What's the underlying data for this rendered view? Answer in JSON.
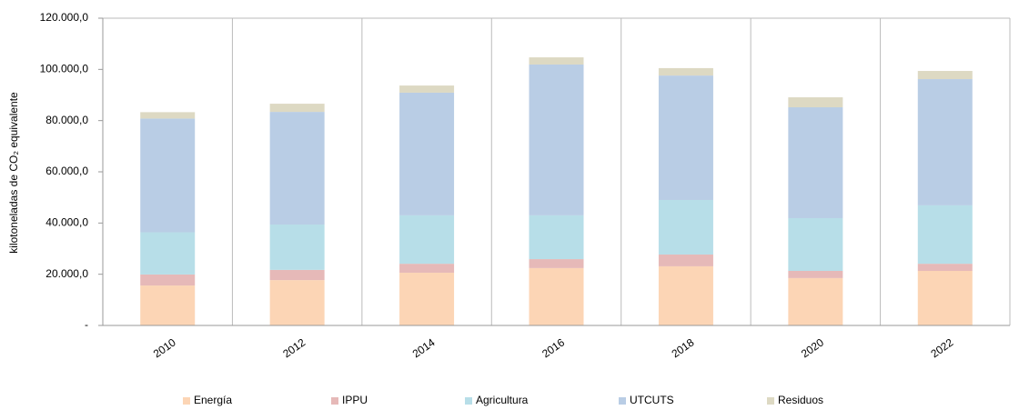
{
  "chart_data": {
    "type": "stacked_bar",
    "y_label": "kilotoneladas de CO₂ equivalente",
    "categories": [
      "2010",
      "2012",
      "2014",
      "2016",
      "2018",
      "2020",
      "2022"
    ],
    "series": [
      {
        "name": "Energía",
        "color": "#fcd5b5",
        "values": [
          15600,
          17700,
          20600,
          22400,
          23100,
          18500,
          21300
        ]
      },
      {
        "name": "IPPU",
        "color": "#e6b9b8",
        "values": [
          4300,
          4000,
          3500,
          3500,
          4600,
          2800,
          2800
        ]
      },
      {
        "name": "Agricultura",
        "color": "#b7dee8",
        "values": [
          16500,
          17700,
          18900,
          17100,
          21300,
          20600,
          22800
        ]
      },
      {
        "name": "UTCUTS",
        "color": "#b9cde5",
        "values": [
          44400,
          44000,
          47900,
          58900,
          48600,
          43300,
          49300
        ]
      },
      {
        "name": "Residuos",
        "color": "#ddd9c3",
        "values": [
          2500,
          3200,
          2800,
          2800,
          2900,
          3900,
          3200
        ]
      }
    ],
    "ylim": [
      0,
      120000
    ],
    "yticks": [
      {
        "value": 0,
        "label": "-"
      },
      {
        "value": 20000,
        "label": "20.000,0"
      },
      {
        "value": 40000,
        "label": "40.000,0"
      },
      {
        "value": 60000,
        "label": "60.000,0"
      },
      {
        "value": 80000,
        "label": "80.000,0"
      },
      {
        "value": 100000,
        "label": "100.000,0"
      },
      {
        "value": 120000,
        "label": "120.000,0"
      }
    ],
    "legend": "bottom"
  }
}
